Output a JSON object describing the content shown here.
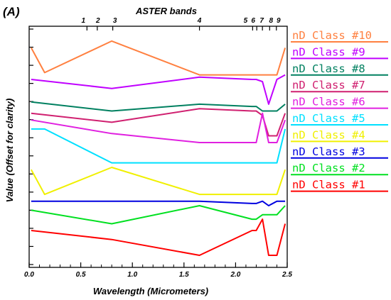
{
  "chart_data": {
    "type": "line",
    "panel_label": "(A)",
    "title_top": "ASTER bands",
    "xlabel": "Wavelength (Micrometers)",
    "ylabel": "Value (Offset for clarity)",
    "xlim": [
      0.0,
      2.5
    ],
    "ylim": [
      0,
      100
    ],
    "x_ticks": [
      "0.0",
      "0.5",
      "1.0",
      "1.5",
      "2.0",
      "2.5"
    ],
    "aster_bands": [
      {
        "label": "1",
        "x": 0.56
      },
      {
        "label": "2",
        "x": 0.66
      },
      {
        "label": "3",
        "x": 0.81
      },
      {
        "label": "4",
        "x": 1.65
      },
      {
        "label": "5",
        "x": 2.165
      },
      {
        "label": "6",
        "x": 2.205
      },
      {
        "label": "7",
        "x": 2.26
      },
      {
        "label": "8",
        "x": 2.33
      },
      {
        "label": "9",
        "x": 2.395
      }
    ],
    "series": [
      {
        "name": "nD Class #10",
        "color": "#ff8040",
        "x": [
          0.02,
          0.15,
          0.8,
          1.65,
          2.16,
          2.2,
          2.26,
          2.32,
          2.4,
          2.48
        ],
        "y": [
          92,
          81,
          95,
          80,
          80,
          80,
          80,
          80,
          80,
          92
        ]
      },
      {
        "name": "nD Class #9",
        "color": "#c000ff",
        "x": [
          0.02,
          0.8,
          1.65,
          2.16,
          2.2,
          2.26,
          2.32,
          2.4,
          2.48
        ],
        "y": [
          78,
          74,
          79,
          78,
          78,
          77,
          67,
          78,
          80
        ]
      },
      {
        "name": "nD Class #8",
        "color": "#008060",
        "x": [
          0.02,
          0.8,
          1.65,
          2.16,
          2.2,
          2.26,
          2.32,
          2.4,
          2.48
        ],
        "y": [
          68,
          64,
          67,
          66,
          66,
          64,
          64,
          64,
          67
        ]
      },
      {
        "name": "nD Class #7",
        "color": "#d02070",
        "x": [
          0.02,
          0.8,
          1.65,
          2.16,
          2.2,
          2.26,
          2.32,
          2.4,
          2.48
        ],
        "y": [
          63,
          59,
          65,
          64,
          64,
          62,
          53,
          53,
          63
        ]
      },
      {
        "name": "nD Class #6",
        "color": "#e020e0",
        "x": [
          0.02,
          0.8,
          1.65,
          2.16,
          2.2,
          2.26,
          2.32,
          2.4,
          2.48
        ],
        "y": [
          60,
          54,
          50,
          50,
          50,
          63,
          50,
          50,
          60
        ]
      },
      {
        "name": "nD Class #5",
        "color": "#00e0ff",
        "x": [
          0.02,
          0.15,
          0.8,
          1.65,
          2.16,
          2.2,
          2.26,
          2.32,
          2.4,
          2.48
        ],
        "y": [
          56,
          56,
          41,
          41,
          41,
          41,
          41,
          41,
          41,
          56
        ]
      },
      {
        "name": "nD Class #4",
        "color": "#f0f000",
        "x": [
          0.02,
          0.15,
          0.8,
          1.65,
          2.16,
          2.2,
          2.26,
          2.32,
          2.4,
          2.48
        ],
        "y": [
          38,
          27,
          39,
          27,
          27,
          27,
          27,
          27,
          27,
          38
        ]
      },
      {
        "name": "nD Class #3",
        "color": "#0000e0",
        "x": [
          0.02,
          0.8,
          1.65,
          2.16,
          2.2,
          2.26,
          2.32,
          2.4,
          2.48
        ],
        "y": [
          24,
          24,
          24,
          23,
          23,
          24,
          22,
          24,
          24
        ]
      },
      {
        "name": "nD Class #2",
        "color": "#00e020",
        "x": [
          0.02,
          0.8,
          1.65,
          2.16,
          2.2,
          2.26,
          2.32,
          2.4,
          2.48
        ],
        "y": [
          20,
          14,
          22,
          16,
          16,
          18,
          18,
          18,
          22
        ]
      },
      {
        "name": "nD Class #1",
        "color": "#ff0000",
        "x": [
          0.02,
          0.8,
          1.65,
          2.16,
          2.2,
          2.26,
          2.32,
          2.4,
          2.48
        ],
        "y": [
          11,
          7,
          0,
          11,
          11,
          16,
          0,
          0,
          14
        ]
      }
    ]
  }
}
